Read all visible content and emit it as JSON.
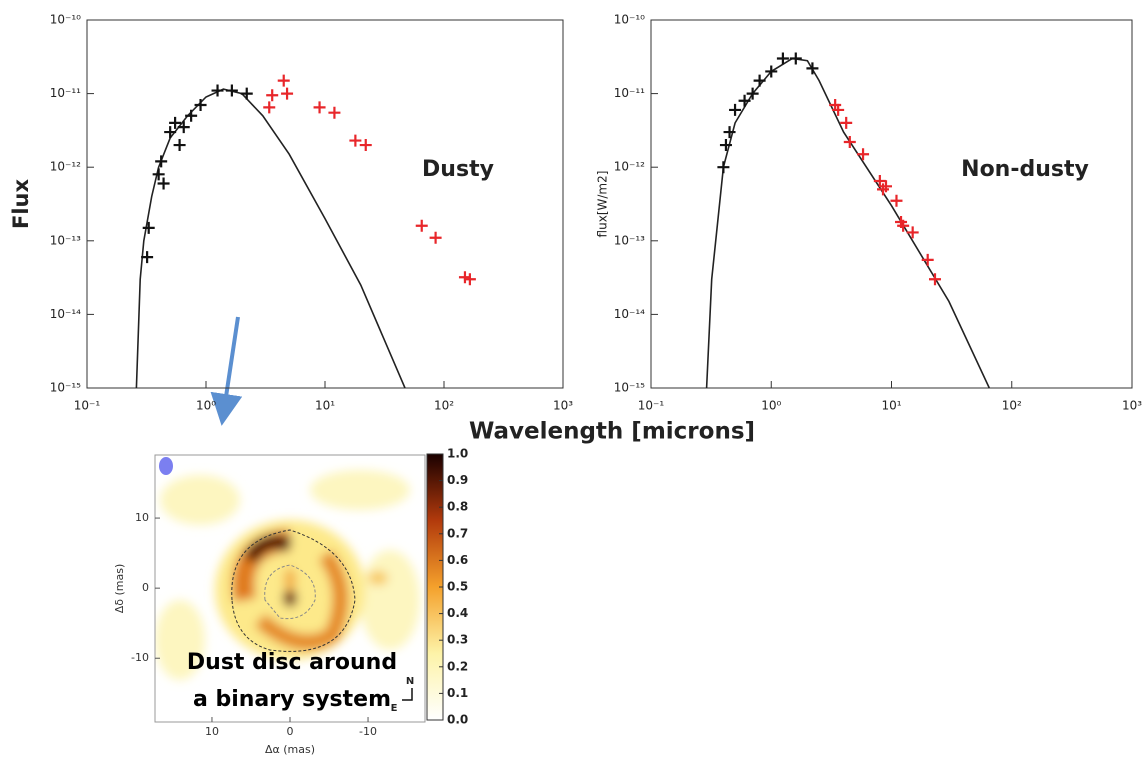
{
  "chart_data": [
    {
      "type": "scatter",
      "ylabel": "Flux",
      "xlabel": "Wavelength [microns]",
      "annotation": "Dusty",
      "xlog": true,
      "ylog": true,
      "xlim": [
        0.1,
        1000
      ],
      "ylim": [
        1e-15,
        1e-10
      ],
      "xticks": [
        {
          "value": 0.1,
          "label": "10⁻¹"
        },
        {
          "value": 1,
          "label": "10⁰"
        },
        {
          "value": 10,
          "label": "10¹"
        },
        {
          "value": 100,
          "label": "10²"
        },
        {
          "value": 1000,
          "label": "10³"
        }
      ],
      "yticks": [
        {
          "value": 1e-15,
          "label": "10⁻¹⁵"
        },
        {
          "value": 1e-14,
          "label": "10⁻¹⁴"
        },
        {
          "value": 1e-13,
          "label": "10⁻¹³"
        },
        {
          "value": 1e-12,
          "label": "10⁻¹²"
        },
        {
          "value": 1e-11,
          "label": "10⁻¹¹"
        },
        {
          "value": 1e-10,
          "label": "10⁻¹⁰"
        }
      ],
      "series": [
        {
          "type": "line",
          "color": "#222222",
          "x": [
            0.26,
            0.28,
            0.3,
            0.35,
            0.4,
            0.5,
            0.7,
            1,
            1.4,
            2,
            3,
            5,
            10,
            20,
            47
          ],
          "values": [
            1e-15,
            3e-14,
            1e-13,
            4e-13,
            1e-12,
            2.5e-12,
            5e-12,
            9e-12,
            1.15e-11,
            1e-11,
            5e-12,
            1.5e-12,
            2e-13,
            2.5e-14,
            1e-15
          ]
        },
        {
          "type": "scatter",
          "color": "#111111",
          "x": [
            0.32,
            0.33,
            0.4,
            0.42,
            0.44,
            0.5,
            0.55,
            0.6,
            0.65,
            0.75,
            0.9,
            1.25,
            1.65,
            2.2
          ],
          "values": [
            6e-14,
            1.5e-13,
            8e-13,
            1.2e-12,
            6e-13,
            3e-12,
            4e-12,
            2e-12,
            3.5e-12,
            5e-12,
            7e-12,
            1.1e-11,
            1.1e-11,
            1e-11
          ]
        },
        {
          "type": "scatter",
          "color": "#e8262a",
          "x": [
            3.4,
            3.6,
            4.5,
            4.8,
            9,
            12,
            18,
            22,
            65,
            85,
            150,
            165
          ],
          "values": [
            6.5e-12,
            9.5e-12,
            1.5e-11,
            1e-11,
            6.5e-12,
            5.5e-12,
            2.3e-12,
            2e-12,
            1.6e-13,
            1.1e-13,
            3.2e-14,
            3e-14
          ]
        }
      ]
    },
    {
      "type": "scatter",
      "ylabel": "flux[W/m2]",
      "annotation": "Non-dusty",
      "xlog": true,
      "ylog": true,
      "xlim": [
        0.1,
        1000
      ],
      "ylim": [
        1e-15,
        1e-10
      ],
      "xticks": [
        {
          "value": 0.1,
          "label": "10⁻¹"
        },
        {
          "value": 1,
          "label": "10⁰"
        },
        {
          "value": 10,
          "label": "10¹"
        },
        {
          "value": 100,
          "label": "10²"
        },
        {
          "value": 1000,
          "label": "10³"
        }
      ],
      "yticks": [
        {
          "value": 1e-15,
          "label": "10⁻¹⁵"
        },
        {
          "value": 1e-14,
          "label": "10⁻¹⁴"
        },
        {
          "value": 1e-13,
          "label": "10⁻¹³"
        },
        {
          "value": 1e-12,
          "label": "10⁻¹²"
        },
        {
          "value": 1e-11,
          "label": "10⁻¹¹"
        },
        {
          "value": 1e-10,
          "label": "10⁻¹⁰"
        }
      ],
      "series": [
        {
          "type": "line",
          "color": "#222222",
          "x": [
            0.29,
            0.32,
            0.4,
            0.5,
            0.7,
            1,
            1.5,
            2,
            2.5,
            4,
            10,
            30,
            65
          ],
          "values": [
            1e-15,
            3e-14,
            1e-12,
            4e-12,
            1e-11,
            2e-11,
            3e-11,
            2.8e-11,
            1.5e-11,
            3e-12,
            3e-13,
            1.5e-14,
            1e-15
          ]
        },
        {
          "type": "scatter",
          "color": "#111111",
          "x": [
            0.4,
            0.42,
            0.45,
            0.5,
            0.6,
            0.7,
            0.8,
            1,
            1.25,
            1.6,
            2.2
          ],
          "values": [
            1e-12,
            2e-12,
            3e-12,
            6e-12,
            8e-12,
            1e-11,
            1.5e-11,
            2e-11,
            3e-11,
            3e-11,
            2.2e-11
          ]
        },
        {
          "type": "scatter",
          "color": "#e8262a",
          "x": [
            3.4,
            3.6,
            4.2,
            4.5,
            5.8,
            8,
            8.5,
            9,
            11,
            12,
            12.5,
            15,
            20,
            23
          ],
          "values": [
            7e-12,
            6e-12,
            4e-12,
            2.2e-12,
            1.5e-12,
            6.5e-13,
            5e-13,
            5.5e-13,
            3.5e-13,
            1.8e-13,
            1.6e-13,
            1.3e-13,
            5.5e-14,
            3e-14
          ]
        }
      ]
    },
    {
      "type": "image",
      "xlabel": "Δα (mas)",
      "ylabel": "Δδ (mas)",
      "annotation": [
        "Dust disc around",
        "a binary system"
      ],
      "north": "N",
      "east": "E",
      "xlim": [
        17.3,
        -17.3
      ],
      "ylim": [
        -19.1,
        19
      ],
      "xticks": [
        10,
        0,
        -10
      ],
      "yticks": [
        10,
        0,
        -10
      ],
      "colorbar": {
        "lim": [
          0,
          1
        ],
        "ticks": [
          {
            "value": 0,
            "label": "0.0"
          },
          0.1,
          0.2,
          0.3,
          0.4,
          0.5,
          0.6,
          0.7,
          0.8,
          0.9,
          {
            "value": 1,
            "label": "1.0"
          }
        ]
      }
    }
  ]
}
